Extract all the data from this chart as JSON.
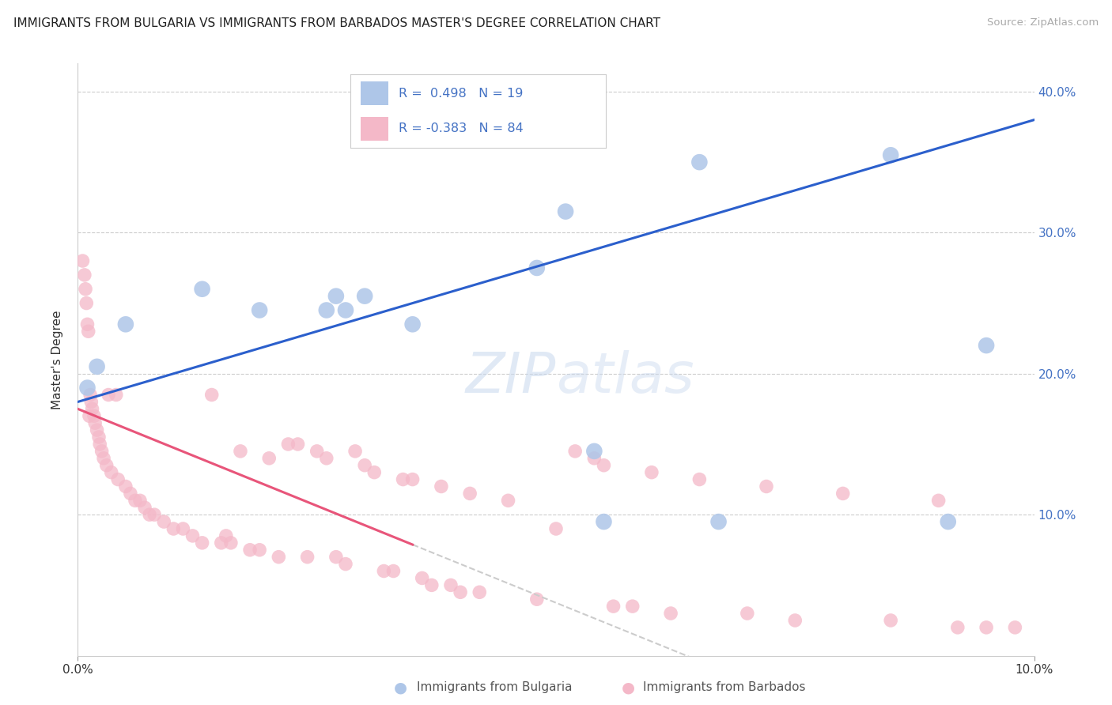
{
  "title": "IMMIGRANTS FROM BULGARIA VS IMMIGRANTS FROM BARBADOS MASTER'S DEGREE CORRELATION CHART",
  "source": "Source: ZipAtlas.com",
  "ylabel": "Master's Degree",
  "xlim": [
    0.0,
    10.0
  ],
  "ylim": [
    0.0,
    42.0
  ],
  "watermark_text": "ZIPatlas",
  "bulgaria_color": "#aec6e8",
  "barbados_color": "#f4b8c8",
  "bulgaria_line_color": "#2b5fcc",
  "barbados_line_color": "#e8557a",
  "barbados_line_end": 3.5,
  "bulgaria_points": [
    [
      0.1,
      19.0
    ],
    [
      0.2,
      20.5
    ],
    [
      0.5,
      23.5
    ],
    [
      1.3,
      26.0
    ],
    [
      1.9,
      24.5
    ],
    [
      2.6,
      24.5
    ],
    [
      2.7,
      25.5
    ],
    [
      2.8,
      24.5
    ],
    [
      3.0,
      25.5
    ],
    [
      3.5,
      23.5
    ],
    [
      4.8,
      27.5
    ],
    [
      5.1,
      31.5
    ],
    [
      5.4,
      14.5
    ],
    [
      5.5,
      9.5
    ],
    [
      6.5,
      35.0
    ],
    [
      6.7,
      9.5
    ],
    [
      8.5,
      35.5
    ],
    [
      9.1,
      9.5
    ],
    [
      9.5,
      22.0
    ]
  ],
  "barbados_points": [
    [
      0.05,
      28.0
    ],
    [
      0.07,
      27.0
    ],
    [
      0.08,
      26.0
    ],
    [
      0.09,
      25.0
    ],
    [
      0.1,
      23.5
    ],
    [
      0.11,
      23.0
    ],
    [
      0.12,
      17.0
    ],
    [
      0.13,
      18.5
    ],
    [
      0.14,
      18.0
    ],
    [
      0.15,
      17.5
    ],
    [
      0.17,
      17.0
    ],
    [
      0.18,
      16.5
    ],
    [
      0.2,
      16.0
    ],
    [
      0.22,
      15.5
    ],
    [
      0.23,
      15.0
    ],
    [
      0.25,
      14.5
    ],
    [
      0.27,
      14.0
    ],
    [
      0.3,
      13.5
    ],
    [
      0.32,
      18.5
    ],
    [
      0.35,
      13.0
    ],
    [
      0.4,
      18.5
    ],
    [
      0.42,
      12.5
    ],
    [
      0.5,
      12.0
    ],
    [
      0.55,
      11.5
    ],
    [
      0.6,
      11.0
    ],
    [
      0.65,
      11.0
    ],
    [
      0.7,
      10.5
    ],
    [
      0.75,
      10.0
    ],
    [
      0.8,
      10.0
    ],
    [
      0.9,
      9.5
    ],
    [
      1.0,
      9.0
    ],
    [
      1.1,
      9.0
    ],
    [
      1.2,
      8.5
    ],
    [
      1.3,
      8.0
    ],
    [
      1.4,
      18.5
    ],
    [
      1.5,
      8.0
    ],
    [
      1.6,
      8.0
    ],
    [
      1.7,
      14.5
    ],
    [
      1.8,
      7.5
    ],
    [
      1.9,
      7.5
    ],
    [
      2.0,
      14.0
    ],
    [
      2.1,
      7.0
    ],
    [
      2.2,
      15.0
    ],
    [
      2.3,
      15.0
    ],
    [
      2.4,
      7.0
    ],
    [
      2.5,
      14.5
    ],
    [
      2.6,
      14.0
    ],
    [
      2.7,
      7.0
    ],
    [
      2.8,
      6.5
    ],
    [
      2.9,
      14.5
    ],
    [
      3.0,
      13.5
    ],
    [
      3.1,
      13.0
    ],
    [
      3.2,
      6.0
    ],
    [
      3.3,
      6.0
    ],
    [
      3.4,
      12.5
    ],
    [
      3.5,
      12.5
    ],
    [
      3.6,
      5.5
    ],
    [
      3.7,
      5.0
    ],
    [
      3.8,
      12.0
    ],
    [
      3.9,
      5.0
    ],
    [
      4.0,
      4.5
    ],
    [
      4.1,
      11.5
    ],
    [
      4.2,
      4.5
    ],
    [
      4.5,
      11.0
    ],
    [
      4.8,
      4.0
    ],
    [
      5.0,
      9.0
    ],
    [
      5.2,
      14.5
    ],
    [
      5.4,
      14.0
    ],
    [
      5.5,
      13.5
    ],
    [
      5.6,
      3.5
    ],
    [
      5.8,
      3.5
    ],
    [
      6.0,
      13.0
    ],
    [
      6.2,
      3.0
    ],
    [
      6.5,
      12.5
    ],
    [
      7.0,
      3.0
    ],
    [
      7.2,
      12.0
    ],
    [
      7.5,
      2.5
    ],
    [
      8.0,
      11.5
    ],
    [
      8.5,
      2.5
    ],
    [
      9.0,
      11.0
    ],
    [
      9.2,
      2.0
    ],
    [
      9.5,
      2.0
    ],
    [
      9.8,
      2.0
    ],
    [
      1.55,
      8.5
    ]
  ],
  "legend_items": [
    {
      "label": "R =  0.498   N = 19",
      "color": "#aec6e8"
    },
    {
      "label": "R = -0.383   N = 84",
      "color": "#f4b8c8"
    }
  ],
  "bottom_legend": [
    {
      "label": "Immigrants from Bulgaria",
      "color": "#aec6e8"
    },
    {
      "label": "Immigrants from Barbados",
      "color": "#f4b8c8"
    }
  ]
}
